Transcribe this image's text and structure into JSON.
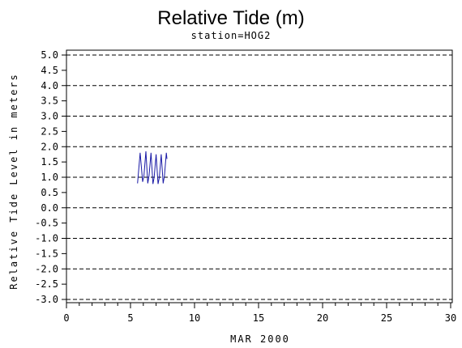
{
  "chart_data": {
    "type": "line",
    "title": "Relative Tide (m)",
    "subtitle": "station=HOG2",
    "xlabel": "MAR 2000",
    "ylabel": "Relative Tide Level in meters",
    "xlim": [
      0,
      30
    ],
    "ylim": [
      -3.0,
      5.0
    ],
    "x_ticks": [
      0,
      5,
      10,
      15,
      20,
      25,
      30
    ],
    "x_tick_labels": [
      "0",
      "5",
      "10",
      "15",
      "20",
      "25",
      "30"
    ],
    "y_ticks": [
      5.0,
      4.5,
      4.0,
      3.5,
      3.0,
      2.5,
      2.0,
      1.5,
      1.0,
      0.5,
      0.0,
      -0.5,
      -1.0,
      -1.5,
      -2.0,
      -2.5,
      -3.0
    ],
    "y_tick_labels": [
      "5.0",
      "4.5",
      "4.0",
      "3.5",
      "3.0",
      "2.5",
      "2.0",
      "1.5",
      "1.0",
      "0.5",
      "0.0",
      "-0.5",
      "-1.0",
      "-1.5",
      "-2.0",
      "-2.5",
      "-3.0"
    ],
    "gridlines_y": [
      5.0,
      4.0,
      3.0,
      2.0,
      1.0,
      0.0,
      -1.0,
      -2.0,
      -3.0
    ],
    "grid_style": "dashed",
    "line_color": "#1a1aa6",
    "series": [
      {
        "x": [
          5.55,
          5.75,
          5.95,
          6.05,
          6.2,
          6.35,
          6.45,
          6.6,
          6.75,
          6.85,
          7.0,
          7.15,
          7.25,
          7.4,
          7.55,
          7.65,
          7.8,
          7.85
        ],
        "values": [
          0.8,
          1.8,
          0.85,
          1.05,
          1.85,
          0.8,
          1.05,
          1.8,
          0.78,
          1.0,
          1.75,
          0.78,
          1.0,
          1.75,
          0.8,
          1.05,
          1.8,
          1.6
        ]
      }
    ]
  }
}
